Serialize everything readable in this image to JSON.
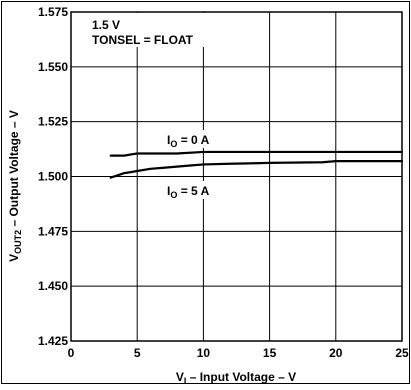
{
  "chart_data": {
    "type": "line",
    "annotation_lines": [
      "1.5 V",
      "TONSEL = FLOAT"
    ],
    "xlabel": {
      "main": "V",
      "sub": "I",
      "rest": " – Input Voltage – V"
    },
    "ylabel": {
      "main": "V",
      "sub": "OUT2",
      "rest": " – Output Voltage – V"
    },
    "xlim": [
      0,
      25
    ],
    "ylim": [
      1.425,
      1.575
    ],
    "x_ticks": [
      "0",
      "5",
      "10",
      "15",
      "20",
      "25"
    ],
    "y_ticks": [
      "1.425",
      "1.450",
      "1.475",
      "1.500",
      "1.525",
      "1.550",
      "1.575"
    ],
    "grid": true,
    "series": [
      {
        "name": "IO = 0 A",
        "label": {
          "main": "I",
          "sub": "O",
          "rest": " = 0 A"
        },
        "x": [
          3,
          4,
          5,
          8,
          10,
          25
        ],
        "y": [
          1.5095,
          1.5095,
          1.5105,
          1.5105,
          1.5112,
          1.5112
        ]
      },
      {
        "name": "IO = 5 A",
        "label": {
          "main": "I",
          "sub": "O",
          "rest": " = 5 A"
        },
        "x": [
          3,
          3.5,
          4,
          5,
          6,
          7,
          8,
          9,
          10,
          12,
          15,
          19,
          20,
          25
        ],
        "y": [
          1.4995,
          1.5005,
          1.5015,
          1.5025,
          1.5035,
          1.504,
          1.5045,
          1.505,
          1.5055,
          1.5058,
          1.5062,
          1.5065,
          1.507,
          1.507
        ]
      }
    ]
  }
}
